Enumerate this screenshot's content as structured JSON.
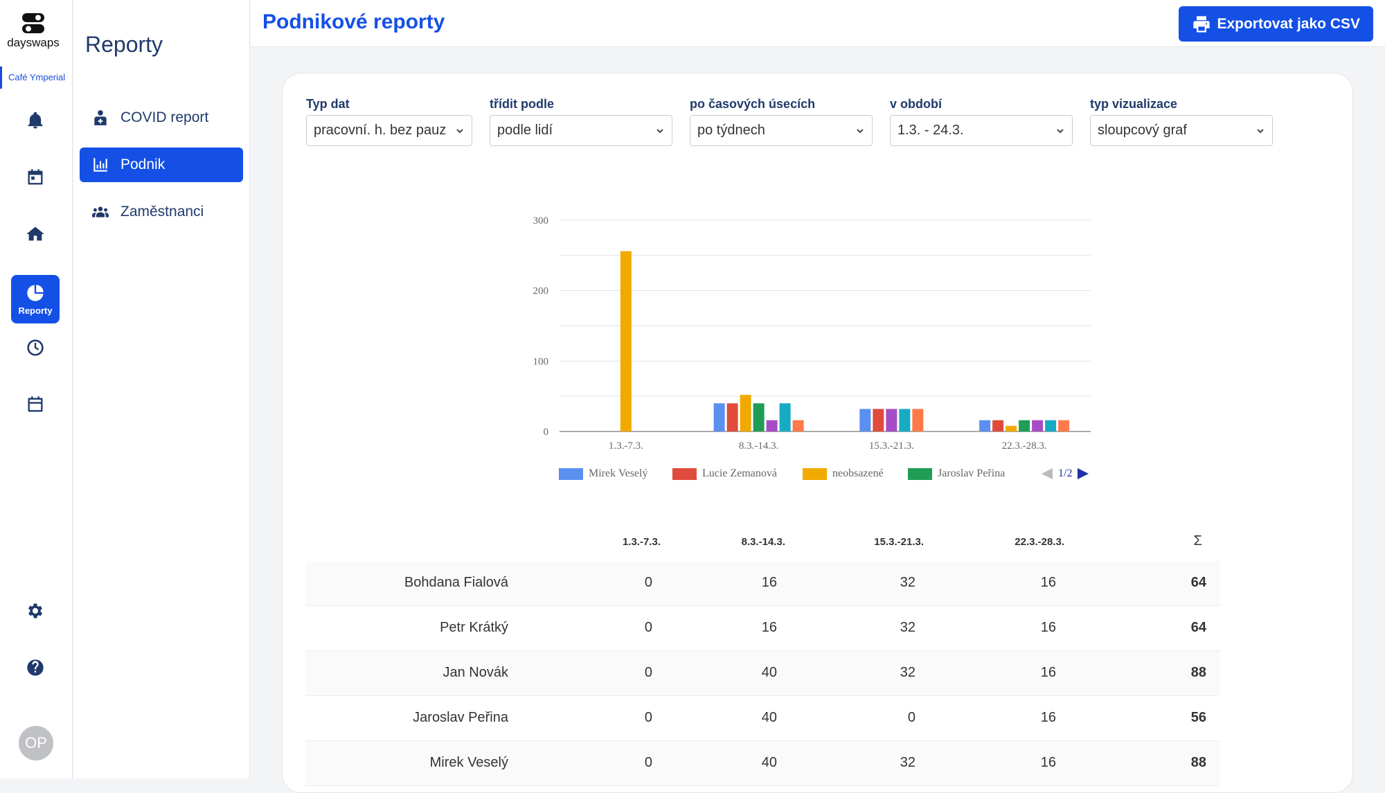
{
  "app": {
    "logo_text": "dayswaps",
    "org_name": "Café Ymperial"
  },
  "rail": {
    "items": [
      {
        "id": "notifications",
        "icon": "bell-icon"
      },
      {
        "id": "calendar",
        "icon": "calendar-icon"
      },
      {
        "id": "home",
        "icon": "home-icon"
      },
      {
        "id": "reports",
        "icon": "pie-chart-icon",
        "label": "Reporty",
        "active": true
      },
      {
        "id": "time",
        "icon": "clock-icon"
      },
      {
        "id": "schedule",
        "icon": "calendar-outline-icon"
      }
    ],
    "bottom": [
      {
        "id": "settings",
        "icon": "gear-icon"
      },
      {
        "id": "help",
        "icon": "help-icon"
      }
    ],
    "avatar_initials": "OP"
  },
  "subnav": {
    "title": "Reporty",
    "items": [
      {
        "label": "COVID report",
        "icon": "medical-person-icon",
        "active": false
      },
      {
        "label": "Podnik",
        "icon": "bar-chart-icon",
        "active": true
      },
      {
        "label": "Zaměstnanci",
        "icon": "users-icon",
        "active": false
      }
    ]
  },
  "header": {
    "title": "Podnikové reporty",
    "export_label": "Exportovat jako CSV"
  },
  "filters": [
    {
      "label": "Typ dat",
      "value": "pracovní. h. bez pauz"
    },
    {
      "label": "třídit podle",
      "value": "podle lidí"
    },
    {
      "label": "po časových úsecích",
      "value": "po týdnech"
    },
    {
      "label": "v období",
      "value": "1.3. - 24.3."
    },
    {
      "label": "typ vizualizace",
      "value": "sloupcový graf"
    }
  ],
  "chart_data": {
    "type": "bar",
    "categories": [
      "1.3.-7.3.",
      "8.3.-14.3.",
      "15.3.-21.3.",
      "22.3.-28.3."
    ],
    "y_ticks": [
      0,
      100,
      200,
      300
    ],
    "ylim": [
      0,
      300
    ],
    "grid": true,
    "legend_position": "bottom",
    "legend_page": "1/2",
    "series": [
      {
        "name": "Mirek Veselý",
        "color": "#5b8ff0",
        "values": [
          0,
          40,
          32,
          16
        ]
      },
      {
        "name": "Lucie Zemanová",
        "color": "#e04b3c",
        "values": [
          0,
          40,
          32,
          16
        ]
      },
      {
        "name": "neobsazené",
        "color": "#f2a900",
        "values": [
          256,
          52,
          0,
          8
        ]
      },
      {
        "name": "Jaroslav Peřina",
        "color": "#1f9d55",
        "values": [
          0,
          40,
          0,
          16
        ]
      },
      {
        "color": "#a64cc6",
        "values": [
          0,
          16,
          32,
          16
        ]
      },
      {
        "color": "#16abc3",
        "values": [
          0,
          40,
          32,
          16
        ]
      },
      {
        "color": "#ff7a4a",
        "values": [
          0,
          16,
          32,
          16
        ]
      }
    ]
  },
  "table": {
    "columns": [
      "1.3.-7.3.",
      "8.3.-14.3.",
      "15.3.-21.3.",
      "22.3.-28.3.",
      "Σ"
    ],
    "rows": [
      {
        "name": "Bohdana Fialová",
        "values": [
          "0",
          "16",
          "32",
          "16"
        ],
        "sum": "64"
      },
      {
        "name": "Petr Krátký",
        "values": [
          "0",
          "16",
          "32",
          "16"
        ],
        "sum": "64"
      },
      {
        "name": "Jan Novák",
        "values": [
          "0",
          "40",
          "32",
          "16"
        ],
        "sum": "88"
      },
      {
        "name": "Jaroslav Peřina",
        "values": [
          "0",
          "40",
          "0",
          "16"
        ],
        "sum": "56"
      },
      {
        "name": "Mirek Veselý",
        "values": [
          "0",
          "40",
          "32",
          "16"
        ],
        "sum": "88"
      }
    ]
  }
}
